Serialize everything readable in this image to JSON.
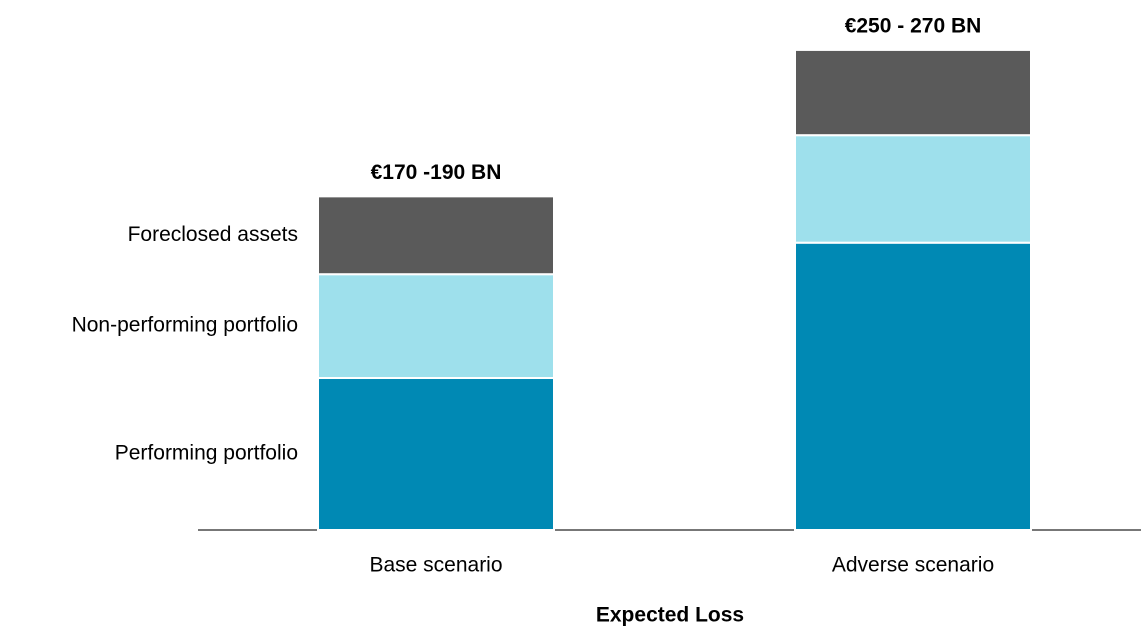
{
  "chart_data": {
    "type": "stacked_bar",
    "categories": [
      "Base scenario",
      "Adverse scenario"
    ],
    "series": [
      {
        "name": "Performing portfolio",
        "color": "#0089b4",
        "values": [
          82,
          155
        ]
      },
      {
        "name": "Non-performing portfolio",
        "color": "#9ee0ec",
        "values": [
          56,
          58
        ]
      },
      {
        "name": "Foreclosed assets",
        "color": "#5a5a5a",
        "values": [
          42,
          46
        ]
      }
    ],
    "total_labels": [
      "€170 -190 BN",
      "€250 - 270 BN"
    ],
    "xlabel": "Expected Loss",
    "ylim": [
      0,
      280
    ]
  }
}
